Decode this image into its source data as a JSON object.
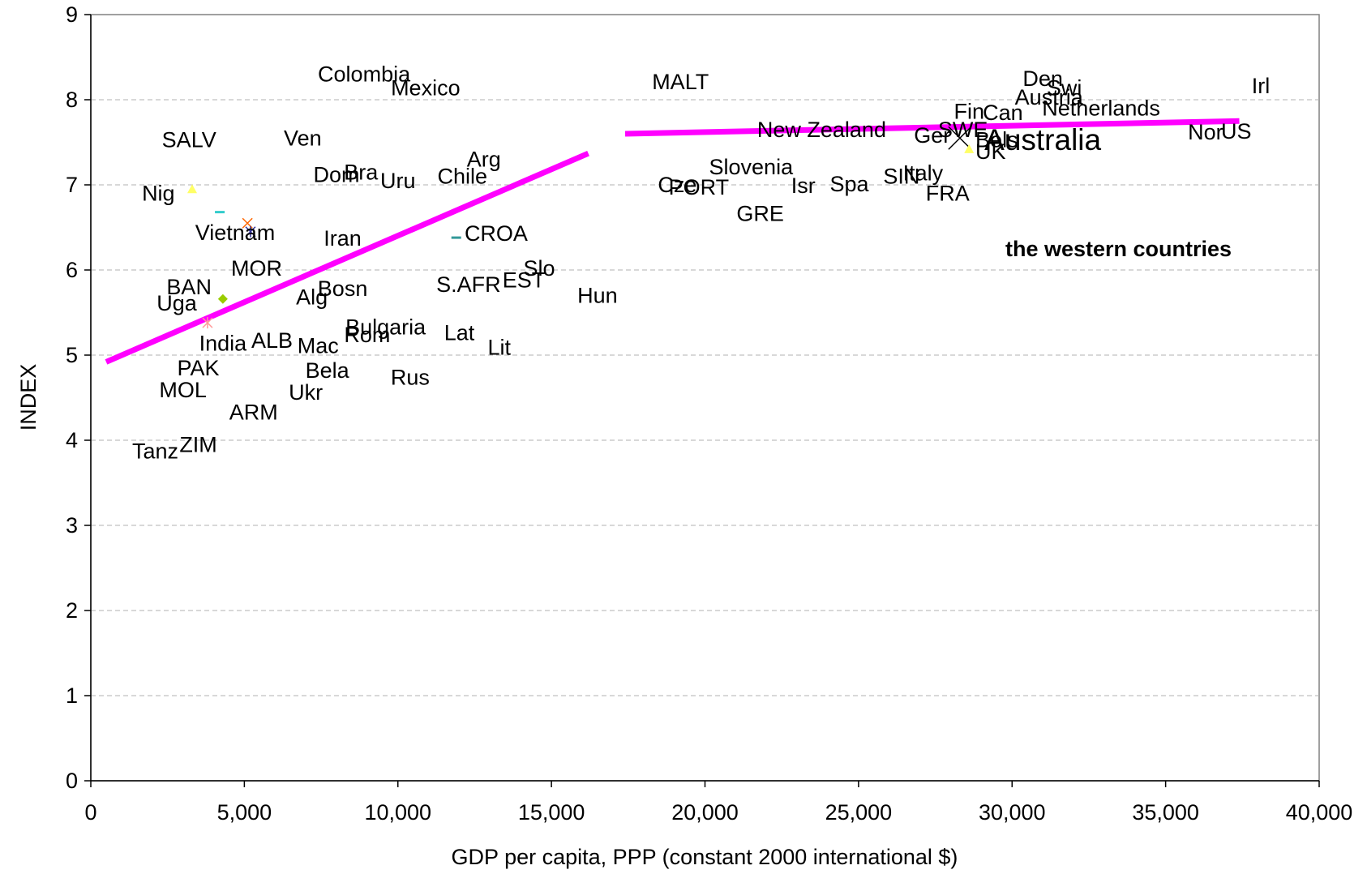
{
  "chart_data": {
    "type": "scatter",
    "title": "",
    "xlabel": "GDP per capita, PPP (constant 2000 international $)",
    "ylabel": "INDEX",
    "xlim": [
      0,
      40000
    ],
    "ylim": [
      0,
      9
    ],
    "x_ticks": [
      "0",
      "5,000",
      "10,000",
      "15,000",
      "20,000",
      "25,000",
      "30,000",
      "35,000",
      "40,000"
    ],
    "y_ticks": [
      "0",
      "1",
      "2",
      "3",
      "4",
      "5",
      "6",
      "7",
      "8",
      "9"
    ],
    "grid": "horizontal dashed",
    "legend": "none",
    "annotation": "the western countries",
    "highlight_color": "#ff0000",
    "trend_color": "#ff00ff",
    "trend_lines": [
      {
        "x": [
          500,
          16200
        ],
        "y": [
          4.92,
          7.37
        ]
      },
      {
        "x": [
          17400,
          37400
        ],
        "y": [
          7.6,
          7.75
        ]
      }
    ],
    "markers": [
      {
        "x": 3300,
        "y": 6.95,
        "color": "#ffff66",
        "shape": "triangle"
      },
      {
        "x": 4200,
        "y": 6.68,
        "color": "#33cccc",
        "shape": "dash"
      },
      {
        "x": 5100,
        "y": 6.55,
        "color": "#ff6600",
        "shape": "x"
      },
      {
        "x": 5200,
        "y": 6.45,
        "color": "#333399",
        "shape": "star"
      },
      {
        "x": 4300,
        "y": 5.66,
        "color": "#99cc00",
        "shape": "diamond"
      },
      {
        "x": 3800,
        "y": 5.38,
        "color": "#ff9999",
        "shape": "star"
      },
      {
        "x": 11900,
        "y": 6.38,
        "color": "#339999",
        "shape": "dash"
      },
      {
        "x": 28300,
        "y": 7.55,
        "color": "#000000",
        "shape": "x"
      },
      {
        "x": 28600,
        "y": 7.42,
        "color": "#ffff66",
        "shape": "triangle"
      }
    ],
    "points": [
      {
        "label": "Colombia",
        "x": 8900,
        "y": 8.3
      },
      {
        "label": "Mexico",
        "x": 10900,
        "y": 8.14
      },
      {
        "label": "MALT",
        "x": 19200,
        "y": 8.21
      },
      {
        "label": "SALV",
        "x": 3200,
        "y": 7.53
      },
      {
        "label": "Ven",
        "x": 6900,
        "y": 7.55
      },
      {
        "label": "Nig",
        "x": 2200,
        "y": 6.9
      },
      {
        "label": "Vietnam",
        "x": 4700,
        "y": 6.44
      },
      {
        "label": "Dom",
        "x": 8000,
        "y": 7.12
      },
      {
        "label": "Bra",
        "x": 8800,
        "y": 7.15
      },
      {
        "label": "Uru",
        "x": 10000,
        "y": 7.05
      },
      {
        "label": "Chile",
        "x": 12100,
        "y": 7.1
      },
      {
        "label": "Arg",
        "x": 12800,
        "y": 7.3
      },
      {
        "label": "Iran",
        "x": 8200,
        "y": 6.37
      },
      {
        "label": "CROA",
        "x": 13200,
        "y": 6.43
      },
      {
        "label": "MOR",
        "x": 5400,
        "y": 6.02
      },
      {
        "label": "BAN",
        "x": 3200,
        "y": 5.8
      },
      {
        "label": "Uga",
        "x": 2800,
        "y": 5.61
      },
      {
        "label": "Alg",
        "x": 7200,
        "y": 5.68
      },
      {
        "label": "Bosn",
        "x": 8200,
        "y": 5.78
      },
      {
        "label": "S.AFR",
        "x": 12300,
        "y": 5.83
      },
      {
        "label": "EST",
        "x": 14100,
        "y": 5.88
      },
      {
        "label": "Slo",
        "x": 14600,
        "y": 6.02
      },
      {
        "label": "Hun",
        "x": 16500,
        "y": 5.7
      },
      {
        "label": "India",
        "x": 4300,
        "y": 5.14
      },
      {
        "label": "ALB",
        "x": 5900,
        "y": 5.17
      },
      {
        "label": "Mac",
        "x": 7400,
        "y": 5.11
      },
      {
        "label": "Bulgaria",
        "x": 9600,
        "y": 5.33
      },
      {
        "label": "Rom",
        "x": 9000,
        "y": 5.24
      },
      {
        "label": "Lat",
        "x": 12000,
        "y": 5.26
      },
      {
        "label": "Lit",
        "x": 13300,
        "y": 5.09
      },
      {
        "label": "PAK",
        "x": 3500,
        "y": 4.85
      },
      {
        "label": "MOL",
        "x": 3000,
        "y": 4.59
      },
      {
        "label": "Bela",
        "x": 7700,
        "y": 4.82
      },
      {
        "label": "Rus",
        "x": 10400,
        "y": 4.74
      },
      {
        "label": "Ukr",
        "x": 7000,
        "y": 4.56
      },
      {
        "label": "ARM",
        "x": 5300,
        "y": 4.33
      },
      {
        "label": "Tanz",
        "x": 2100,
        "y": 3.87
      },
      {
        "label": "ZIM",
        "x": 3500,
        "y": 3.95
      },
      {
        "label": "New Zealand",
        "x": 23800,
        "y": 7.65
      },
      {
        "label": "Ger",
        "x": 27400,
        "y": 7.58
      },
      {
        "label": "SWE",
        "x": 28400,
        "y": 7.65
      },
      {
        "label": "Bels",
        "x": 29500,
        "y": 7.53
      },
      {
        "label": "Fin",
        "x": 28600,
        "y": 7.86
      },
      {
        "label": "Can",
        "x": 29700,
        "y": 7.85
      },
      {
        "label": "Den",
        "x": 31000,
        "y": 8.25
      },
      {
        "label": "Swi",
        "x": 31700,
        "y": 8.14
      },
      {
        "label": "Austria",
        "x": 31200,
        "y": 8.03
      },
      {
        "label": "Netherlands",
        "x": 32900,
        "y": 7.9
      },
      {
        "label": "Irl",
        "x": 38100,
        "y": 8.16
      },
      {
        "label": "Nor",
        "x": 36300,
        "y": 7.62
      },
      {
        "label": "US",
        "x": 37300,
        "y": 7.63
      },
      {
        "label": "UK",
        "x": 29300,
        "y": 7.39
      },
      {
        "label": "Australia",
        "x": 31000,
        "y": 7.53,
        "highlight": true
      },
      {
        "label": "Cze",
        "x": 19100,
        "y": 7.0
      },
      {
        "label": "PORT",
        "x": 19800,
        "y": 6.97
      },
      {
        "label": "Slovenia",
        "x": 21500,
        "y": 7.21
      },
      {
        "label": "Isr",
        "x": 23200,
        "y": 6.99
      },
      {
        "label": "Spa",
        "x": 24700,
        "y": 7.01
      },
      {
        "label": "GRE",
        "x": 21800,
        "y": 6.66
      },
      {
        "label": "SIN",
        "x": 26400,
        "y": 7.1
      },
      {
        "label": "Italy",
        "x": 27100,
        "y": 7.14
      },
      {
        "label": "FRA",
        "x": 27900,
        "y": 6.9
      }
    ]
  }
}
